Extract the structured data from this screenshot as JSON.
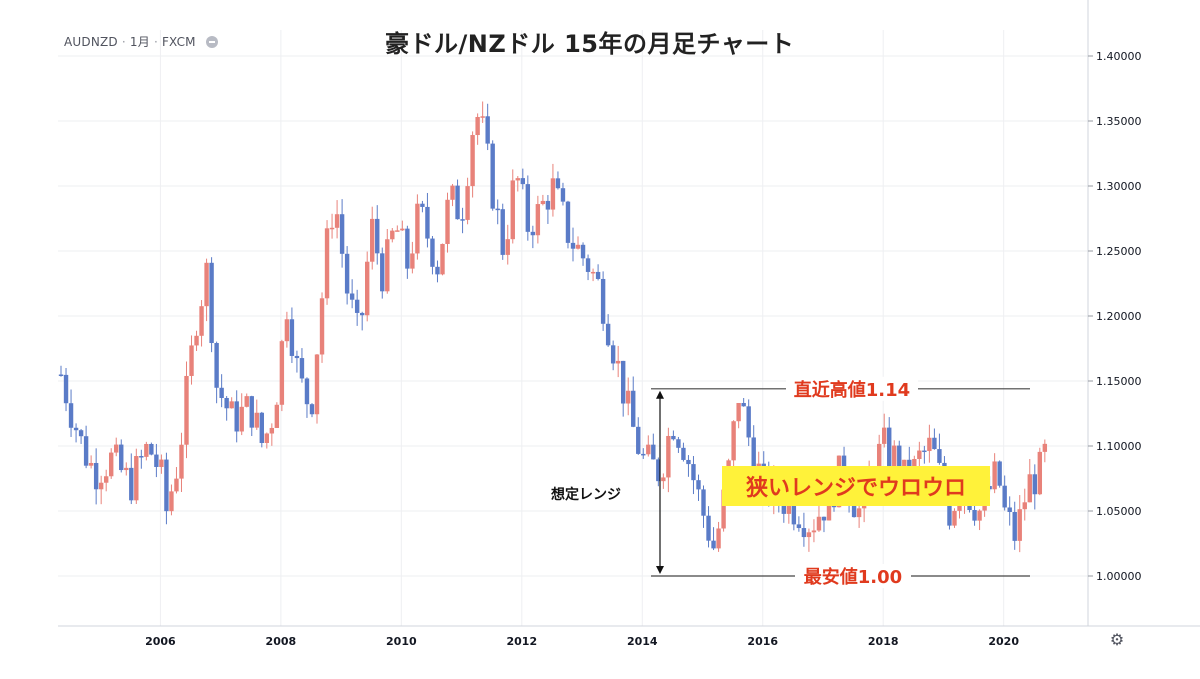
{
  "symbol": {
    "ticker": "AUDNZD",
    "interval": "1月",
    "source": "FXCM"
  },
  "chart_data": {
    "type": "candlestick",
    "title": "豪ドル/NZドル 15年の月足チャート",
    "xlabel": "",
    "ylabel": "",
    "xlim": [
      2004.3,
      2021.4
    ],
    "ylim": [
      0.961,
      1.39
    ],
    "y_ticks": [
      1.0,
      1.05,
      1.1,
      1.15,
      1.2,
      1.25,
      1.3,
      1.35,
      1.4
    ],
    "y_tick_labels": [
      "1.00000",
      "1.05000",
      "1.10000",
      "1.15000",
      "1.20000",
      "1.25000",
      "1.30000",
      "1.35000",
      "1.40000"
    ],
    "x_ticks": [
      2006,
      2008,
      2010,
      2012,
      2014,
      2016,
      2018,
      2020
    ],
    "x_tick_labels": [
      "2006",
      "2008",
      "2010",
      "2012",
      "2014",
      "2016",
      "2018",
      "2020"
    ],
    "gridlines": true,
    "colors": {
      "up": "#e8827a",
      "down": "#5a7bc7",
      "grid": "#eeeff2",
      "axis": "#d1d4dc",
      "annotation_red": "#e03a1e",
      "highlight": "#fff23a"
    },
    "series": [
      {
        "name": "AUDNZD monthly close",
        "anchors": [
          [
            2004.35,
            1.155
          ],
          [
            2004.5,
            1.13
          ],
          [
            2004.7,
            1.1
          ],
          [
            2004.9,
            1.08
          ],
          [
            2005.2,
            1.09
          ],
          [
            2005.5,
            1.07
          ],
          [
            2005.8,
            1.1
          ],
          [
            2006.0,
            1.08
          ],
          [
            2006.1,
            1.05
          ],
          [
            2006.3,
            1.09
          ],
          [
            2006.6,
            1.2
          ],
          [
            2006.8,
            1.24
          ],
          [
            2006.9,
            1.15
          ],
          [
            2007.2,
            1.12
          ],
          [
            2007.5,
            1.13
          ],
          [
            2007.7,
            1.1
          ],
          [
            2007.9,
            1.13
          ],
          [
            2008.1,
            1.21
          ],
          [
            2008.3,
            1.15
          ],
          [
            2008.5,
            1.13
          ],
          [
            2008.8,
            1.27
          ],
          [
            2008.9,
            1.29
          ],
          [
            2009.1,
            1.22
          ],
          [
            2009.3,
            1.18
          ],
          [
            2009.5,
            1.27
          ],
          [
            2009.7,
            1.23
          ],
          [
            2009.9,
            1.27
          ],
          [
            2010.1,
            1.24
          ],
          [
            2010.3,
            1.28
          ],
          [
            2010.6,
            1.24
          ],
          [
            2010.8,
            1.29
          ],
          [
            2011.0,
            1.28
          ],
          [
            2011.2,
            1.35
          ],
          [
            2011.3,
            1.355
          ],
          [
            2011.5,
            1.3
          ],
          [
            2011.7,
            1.25
          ],
          [
            2011.9,
            1.31
          ],
          [
            2012.1,
            1.27
          ],
          [
            2012.3,
            1.28
          ],
          [
            2012.5,
            1.3
          ],
          [
            2012.8,
            1.26
          ],
          [
            2013.1,
            1.24
          ],
          [
            2013.3,
            1.22
          ],
          [
            2013.6,
            1.16
          ],
          [
            2013.8,
            1.12
          ],
          [
            2014.0,
            1.09
          ],
          [
            2014.3,
            1.08
          ],
          [
            2014.5,
            1.12
          ],
          [
            2014.7,
            1.1
          ],
          [
            2015.0,
            1.05
          ],
          [
            2015.2,
            1.02
          ],
          [
            2015.4,
            1.07
          ],
          [
            2015.6,
            1.14
          ],
          [
            2015.8,
            1.1
          ],
          [
            2016.0,
            1.07
          ],
          [
            2016.3,
            1.06
          ],
          [
            2016.6,
            1.05
          ],
          [
            2016.8,
            1.04
          ],
          [
            2017.1,
            1.06
          ],
          [
            2017.3,
            1.08
          ],
          [
            2017.6,
            1.05
          ],
          [
            2017.8,
            1.08
          ],
          [
            2018.0,
            1.1
          ],
          [
            2018.2,
            1.09
          ],
          [
            2018.4,
            1.07
          ],
          [
            2018.6,
            1.09
          ],
          [
            2018.8,
            1.1
          ],
          [
            2019.1,
            1.05
          ],
          [
            2019.3,
            1.07
          ],
          [
            2019.6,
            1.05
          ],
          [
            2019.9,
            1.08
          ],
          [
            2020.0,
            1.05
          ],
          [
            2020.2,
            1.03
          ],
          [
            2020.4,
            1.07
          ],
          [
            2020.6,
            1.08
          ],
          [
            2020.7,
            1.095
          ]
        ]
      }
    ],
    "annotations": {
      "recent_high": {
        "label": "直近高値1.14",
        "value": 1.144
      },
      "recent_low": {
        "label": "最安値1.00",
        "value": 1.0
      },
      "expected_range": {
        "label": "想定レンジ",
        "from": 1.0,
        "to": 1.144
      },
      "narrow_range": {
        "label": "狭いレンジでウロウロ"
      }
    }
  }
}
